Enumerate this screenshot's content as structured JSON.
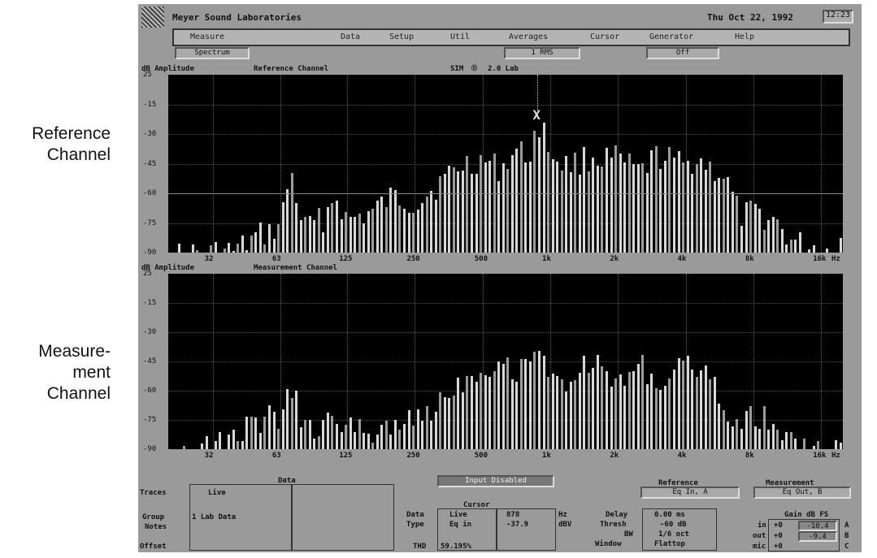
{
  "side_labels": {
    "reference": [
      "Reference",
      "Channel"
    ],
    "measurement": [
      "Measure-",
      "ment",
      "Channel"
    ]
  },
  "titlebar": {
    "app_name": "Meyer Sound Laboratories",
    "date": "Thu Oct 22, 1992",
    "time": "12:23"
  },
  "menu": [
    "Measure",
    "Data",
    "Setup",
    "Util",
    "Averages",
    "Cursor",
    "Generator",
    "Help"
  ],
  "status": {
    "mode": "Spectrum",
    "averaging": "1  RMS",
    "generator": "Off"
  },
  "upper_plot": {
    "ylabel": "dB Amplitude",
    "title": "Reference Channel",
    "brand": "SIM",
    "brand_symbol": "®",
    "version": "2.0 Lab",
    "y_ticks": [
      "25",
      "-15",
      "-30",
      "-45",
      "-60",
      "-75",
      "-90"
    ],
    "x_ticks": [
      "32",
      "63",
      "125",
      "250",
      "500",
      "1k",
      "2k",
      "4k",
      "8k",
      "16k"
    ],
    "x_unit": "Hz",
    "cursor_marker": "X",
    "threshold_db": -60
  },
  "lower_plot": {
    "ylabel": "dB Amplitude",
    "title": "Measurement Channel",
    "y_ticks": [
      "25",
      "-15",
      "-30",
      "-45",
      "-60",
      "-75",
      "-90"
    ],
    "x_ticks": [
      "32",
      "63",
      "125",
      "250",
      "500",
      "1k",
      "2k",
      "4k",
      "8k",
      "16k"
    ],
    "x_unit": "Hz"
  },
  "chart_data": [
    {
      "type": "bar",
      "title": "Reference Channel",
      "ylabel": "dB Amplitude",
      "xlabel": "Hz",
      "x_scale": "log",
      "xlim": [
        20,
        20000
      ],
      "ylim": [
        -90,
        0
      ],
      "grid": true,
      "bar_count": 150,
      "envelope": [
        [
          20,
          -90
        ],
        [
          25,
          -89
        ],
        [
          32,
          -88
        ],
        [
          40,
          -87
        ],
        [
          50,
          -80
        ],
        [
          56,
          -78
        ],
        [
          63,
          -74
        ],
        [
          70,
          -47
        ],
        [
          80,
          -76
        ],
        [
          100,
          -70
        ],
        [
          110,
          -58
        ],
        [
          125,
          -72
        ],
        [
          160,
          -68
        ],
        [
          200,
          -60
        ],
        [
          250,
          -63
        ],
        [
          300,
          -56
        ],
        [
          400,
          -44
        ],
        [
          500,
          -41
        ],
        [
          600,
          -46
        ],
        [
          700,
          -36
        ],
        [
          800,
          -40
        ],
        [
          900,
          -22
        ],
        [
          1000,
          -38
        ],
        [
          1200,
          -44
        ],
        [
          1500,
          -40
        ],
        [
          2000,
          -41
        ],
        [
          2500,
          -48
        ],
        [
          3000,
          -39
        ],
        [
          4000,
          -44
        ],
        [
          4500,
          -40
        ],
        [
          5000,
          -44
        ],
        [
          6000,
          -50
        ],
        [
          7000,
          -70
        ],
        [
          8000,
          -68
        ],
        [
          10000,
          -72
        ],
        [
          12000,
          -83
        ],
        [
          16000,
          -86
        ],
        [
          18000,
          -88
        ],
        [
          20000,
          -81
        ]
      ],
      "cursor_peak_db": -22
    },
    {
      "type": "bar",
      "title": "Measurement Channel",
      "ylabel": "dB Amplitude",
      "xlabel": "Hz",
      "x_scale": "log",
      "xlim": [
        20,
        20000
      ],
      "ylim": [
        -90,
        0
      ],
      "grid": true,
      "bar_count": 150,
      "envelope": [
        [
          20,
          -89
        ],
        [
          25,
          -89
        ],
        [
          32,
          -87
        ],
        [
          40,
          -80
        ],
        [
          50,
          -74
        ],
        [
          56,
          -72
        ],
        [
          63,
          -73
        ],
        [
          70,
          -53
        ],
        [
          80,
          -78
        ],
        [
          100,
          -76
        ],
        [
          110,
          -70
        ],
        [
          125,
          -78
        ],
        [
          160,
          -79
        ],
        [
          200,
          -74
        ],
        [
          250,
          -74
        ],
        [
          300,
          -66
        ],
        [
          400,
          -53
        ],
        [
          500,
          -46
        ],
        [
          600,
          -44
        ],
        [
          700,
          -48
        ],
        [
          800,
          -40
        ],
        [
          900,
          -33
        ],
        [
          1000,
          -55
        ],
        [
          1200,
          -52
        ],
        [
          1500,
          -43
        ],
        [
          2000,
          -55
        ],
        [
          2500,
          -43
        ],
        [
          3000,
          -55
        ],
        [
          4000,
          -46
        ],
        [
          4500,
          -44
        ],
        [
          5000,
          -52
        ],
        [
          6000,
          -66
        ],
        [
          7000,
          -74
        ],
        [
          8000,
          -70
        ],
        [
          10000,
          -76
        ],
        [
          12000,
          -85
        ],
        [
          16000,
          -87
        ],
        [
          18000,
          -86
        ],
        [
          20000,
          -80
        ]
      ]
    }
  ],
  "bottom": {
    "data_panel": {
      "title": "Data",
      "traces_label": "Traces",
      "traces_value": "Live",
      "group_label": "Group",
      "group_value": "1  Lab Data",
      "notes_label": "Notes",
      "offset_label": "Offset"
    },
    "input_status": "Input Disabled",
    "cursor_panel": {
      "title": "Cursor",
      "data_label": "Data",
      "data_value": "Live",
      "freq_value": "878",
      "freq_unit": "Hz",
      "type_label": "Type",
      "type_value": "Eq in",
      "level_value": "-37.9",
      "level_unit": "dBV",
      "thd_label": "THD",
      "thd_value": "59.195%"
    },
    "delay_panel": {
      "delay_label": "Delay",
      "delay_value": "0.00 ms",
      "thresh_label": "Thresh",
      "thresh_value": "-60 dB",
      "bw_label": "BW",
      "bw_value": "1/6 oct",
      "window_label": "Window",
      "window_value": "Flattop"
    },
    "reference": {
      "title": "Reference",
      "value": "Eq In, A"
    },
    "measurement": {
      "title": "Measurement",
      "value": "Eq Out, B"
    },
    "gain": {
      "title": "Gain dB FS",
      "rows": [
        {
          "label": "in",
          "value": "+0",
          "reading": "-10.4",
          "channel": "A"
        },
        {
          "label": "out",
          "value": "+0",
          "reading": "-9.4",
          "channel": "B"
        },
        {
          "label": "mic",
          "value": "+0",
          "reading": "",
          "channel": "C"
        }
      ]
    }
  },
  "colors": {
    "screen": "#9a9a9a",
    "plot_bg": "#000000",
    "bar_light": "#d8d8d8",
    "bar_mid": "#9c9c9c",
    "threshold": "#8a8a8a"
  }
}
